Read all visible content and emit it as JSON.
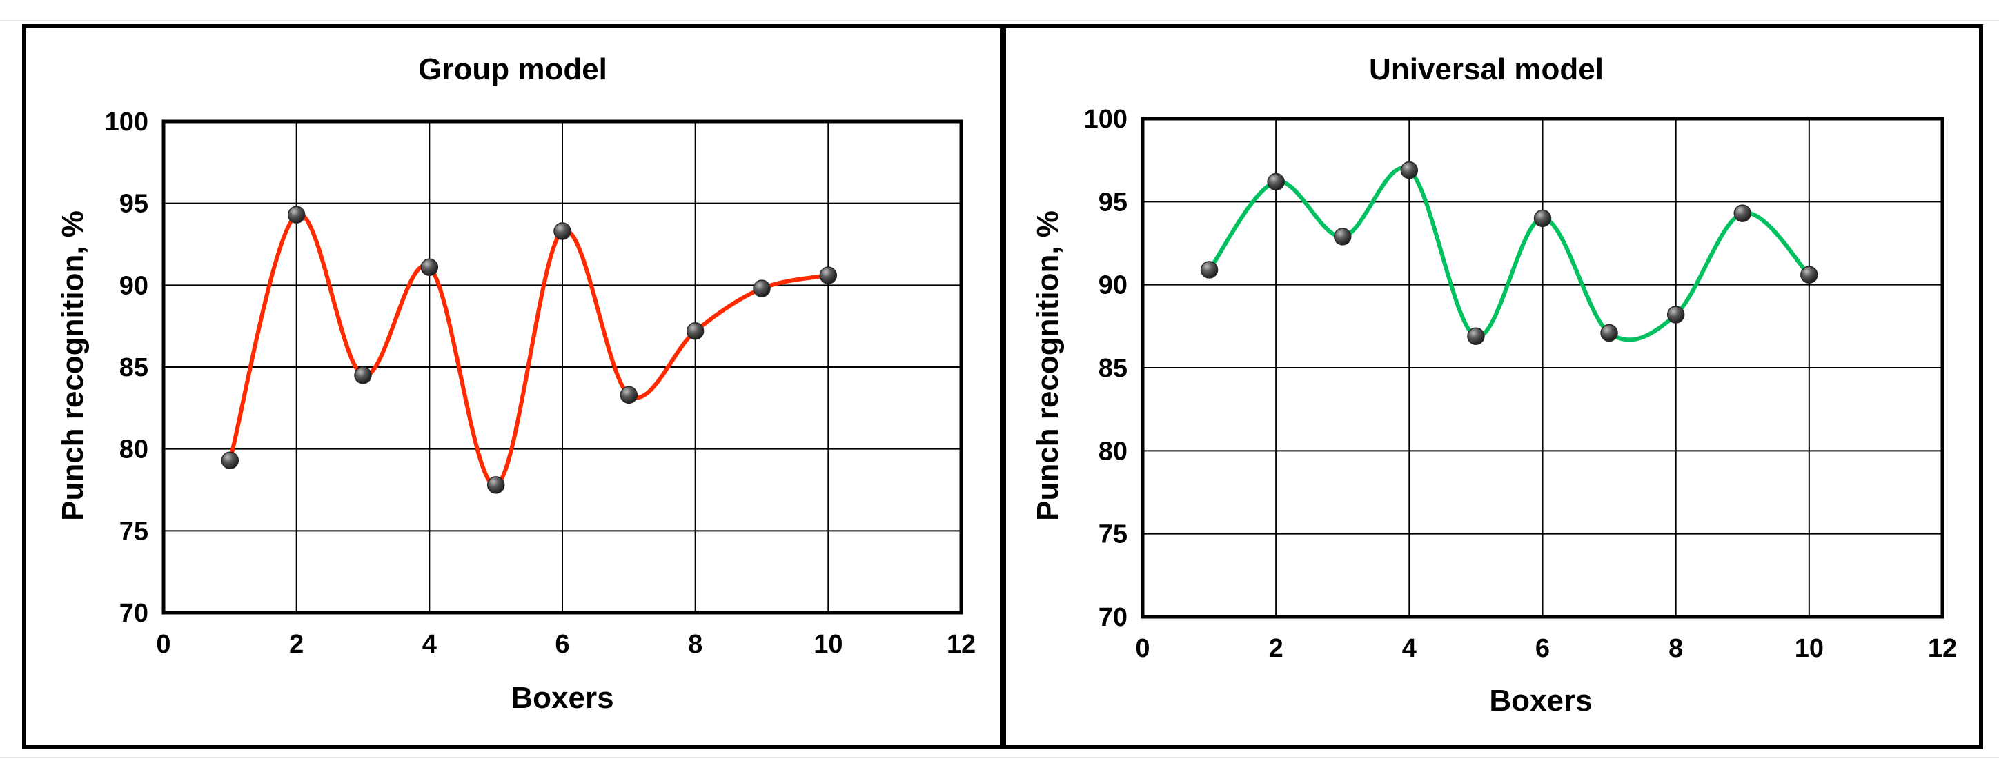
{
  "chart_data": [
    {
      "type": "line",
      "title": "Group model",
      "xlabel": "Boxers",
      "ylabel": "Punch recognition, %",
      "xlim": [
        0,
        12
      ],
      "ylim": [
        70,
        100
      ],
      "xticks": [
        0,
        2,
        4,
        6,
        8,
        10,
        12
      ],
      "yticks": [
        70,
        75,
        80,
        85,
        90,
        95,
        100
      ],
      "grid": true,
      "line_color": "#ff2a00",
      "marker_color": "#3c3c3c",
      "smooth": true,
      "series": [
        {
          "x": [
            1,
            2,
            3,
            4,
            5,
            6,
            7,
            8,
            9,
            10
          ],
          "y": [
            79.3,
            94.3,
            84.5,
            91.1,
            77.8,
            93.3,
            83.3,
            87.2,
            89.8,
            90.6
          ]
        }
      ]
    },
    {
      "type": "line",
      "title": "Universal model",
      "xlabel": "Boxers",
      "ylabel": "Punch recognition, %",
      "xlim": [
        0,
        12
      ],
      "ylim": [
        70,
        100
      ],
      "xticks": [
        0,
        2,
        4,
        6,
        8,
        10,
        12
      ],
      "yticks": [
        70,
        75,
        80,
        85,
        90,
        95,
        100
      ],
      "grid": true,
      "line_color": "#00c060",
      "marker_color": "#3c3c3c",
      "smooth": true,
      "series": [
        {
          "x": [
            1,
            2,
            3,
            4,
            5,
            6,
            7,
            8,
            9,
            10
          ],
          "y": [
            90.9,
            96.2,
            92.9,
            96.9,
            86.9,
            94.0,
            87.1,
            88.2,
            94.3,
            90.6
          ]
        }
      ]
    }
  ]
}
